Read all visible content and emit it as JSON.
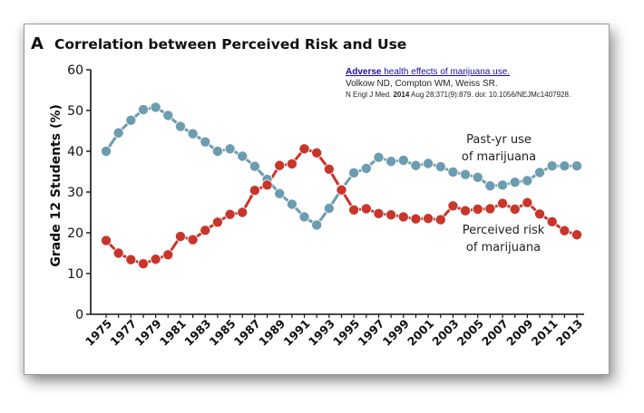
{
  "figure": {
    "panel_letter": "A",
    "title": "Correlation between Perceived Risk and Use"
  },
  "citation": {
    "link_bold": "Adverse",
    "link_rest": " health effects of marijuana use.",
    "authors": "Volkow ND, Compton WM, Weiss SR.",
    "journal_pre": "N Engl J Med. ",
    "journal_year": "2014",
    "journal_post": " Aug 28;371(9):879. doi: 10.1056/NEJMc1407928."
  },
  "annotations": {
    "use_line1": "Past-yr use",
    "use_line2": "of marijuana",
    "risk_line1": "Perceived risk",
    "risk_line2": "of marijuana"
  },
  "colors": {
    "use_series": "#6c9cb0",
    "risk_series": "#c8352b"
  },
  "chart_data": {
    "type": "line",
    "title": "Correlation between Perceived Risk and Use",
    "ylabel": "Grade 12 Students (%)",
    "xlabel": "",
    "ylim": [
      0,
      60
    ],
    "yticks": [
      0,
      10,
      20,
      30,
      40,
      50,
      60
    ],
    "xticks": [
      1975,
      1977,
      1979,
      1981,
      1983,
      1985,
      1987,
      1989,
      1991,
      1993,
      1995,
      1997,
      1999,
      2001,
      2003,
      2005,
      2007,
      2009,
      2011,
      2013
    ],
    "x": [
      1975,
      1976,
      1977,
      1978,
      1979,
      1980,
      1981,
      1982,
      1983,
      1984,
      1985,
      1986,
      1987,
      1988,
      1989,
      1990,
      1991,
      1992,
      1993,
      1994,
      1995,
      1996,
      1997,
      1998,
      1999,
      2000,
      2001,
      2002,
      2003,
      2004,
      2005,
      2006,
      2007,
      2008,
      2009,
      2010,
      2011,
      2012,
      2013
    ],
    "series": [
      {
        "name": "Past-yr use of marijuana",
        "values": [
          40,
          44.5,
          47.6,
          50.2,
          50.8,
          48.8,
          46.1,
          44.3,
          42.3,
          40,
          40.6,
          38.8,
          36.3,
          33.1,
          29.6,
          27,
          23.9,
          21.9,
          26,
          30.7,
          34.7,
          35.8,
          38.5,
          37.5,
          37.8,
          36.5,
          37,
          36.2,
          34.9,
          34.3,
          33.6,
          31.5,
          31.7,
          32.4,
          32.8,
          34.8,
          36.4,
          36.4,
          36.4
        ]
      },
      {
        "name": "Perceived risk of marijuana",
        "values": [
          18.1,
          15,
          13.4,
          12.4,
          13.5,
          14.6,
          19.1,
          18.3,
          20.6,
          22.6,
          24.5,
          25,
          30.4,
          31.7,
          36.5,
          36.9,
          40.6,
          39.6,
          35.6,
          30.5,
          25.6,
          25.9,
          24.7,
          24.4,
          23.9,
          23.4,
          23.5,
          23.2,
          26.6,
          25.4,
          25.8,
          25.9,
          27.2,
          25.8,
          27.4,
          24.6,
          22.7,
          20.5,
          19.5
        ]
      }
    ],
    "grid": false,
    "legend": "inline labels"
  }
}
